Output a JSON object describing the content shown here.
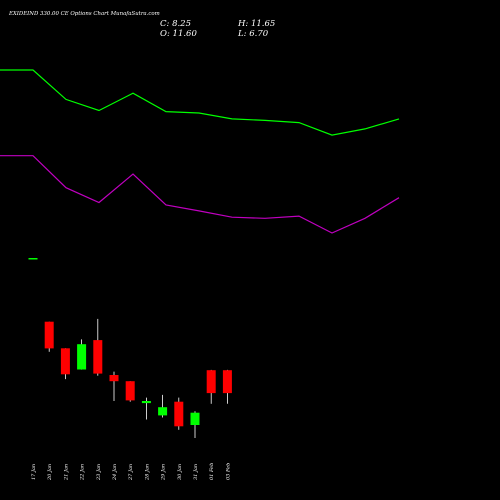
{
  "chart_data": {
    "type": "candlestick",
    "title": "EXIDEIND 330.00 CE Options Chart MunafaSutra.com",
    "ohlc_labels": {
      "open": "O: 11.60",
      "high": "H: 11.65",
      "low": "L: 6.70",
      "close": "C: 8.25"
    },
    "dates": [
      "17 Jan",
      "20 Jan",
      "21 Jan",
      "22 Jan",
      "23 Jan",
      "24 Jan",
      "27 Jan",
      "28 Jan",
      "29 Jan",
      "30 Jan",
      "31 Jan",
      "01 Feb",
      "03 Feb"
    ],
    "candles": [
      {
        "date": "17 Jan",
        "open": 28.0,
        "high": 28.0,
        "low": 28.0,
        "close": 28.0,
        "color": "#00ff00"
      },
      {
        "date": "20 Jan",
        "open": 18.7,
        "high": 18.7,
        "low": 14.3,
        "close": 14.8,
        "color": "#ff0000"
      },
      {
        "date": "21 Jan",
        "open": 14.8,
        "high": 14.8,
        "low": 10.3,
        "close": 11.0,
        "color": "#ff0000"
      },
      {
        "date": "22 Jan",
        "open": 11.7,
        "high": 16.1,
        "low": 11.7,
        "close": 15.4,
        "color": "#00ff00"
      },
      {
        "date": "23 Jan",
        "open": 16.0,
        "high": 19.1,
        "low": 10.8,
        "close": 11.1,
        "color": "#ff0000"
      },
      {
        "date": "24 Jan",
        "open": 10.9,
        "high": 11.4,
        "low": 7.1,
        "close": 10.0,
        "color": "#ff0000"
      },
      {
        "date": "27 Jan",
        "open": 10.0,
        "high": 10.0,
        "low": 7.0,
        "close": 7.2,
        "color": "#ff0000"
      },
      {
        "date": "28 Jan",
        "open": 7.1,
        "high": 7.6,
        "low": 4.4,
        "close": 6.8,
        "color": "#00ff00"
      },
      {
        "date": "29 Jan",
        "open": 5.0,
        "high": 8.0,
        "low": 4.7,
        "close": 6.2,
        "color": "#00ff00"
      },
      {
        "date": "30 Jan",
        "open": 7.0,
        "high": 7.6,
        "low": 2.9,
        "close": 3.4,
        "color": "#ff0000"
      },
      {
        "date": "31 Jan",
        "open": 3.6,
        "high": 5.6,
        "low": 1.7,
        "close": 5.4,
        "color": "#00ff00"
      },
      {
        "date": "01 Feb",
        "open": 11.6,
        "high": 11.65,
        "low": 6.7,
        "close": 8.25,
        "color": "#ff0000"
      },
      {
        "date": "03 Feb",
        "open": 11.6,
        "high": 11.65,
        "low": 6.7,
        "close": 8.25,
        "color": "#ff0000"
      }
    ],
    "series": [
      {
        "color": "#00ff00",
        "values": [
          90.0,
          90.0,
          82.0,
          79.0,
          83.7,
          78.7,
          78.3,
          76.7,
          76.3,
          75.7,
          72.3,
          74.0,
          76.7
        ]
      },
      {
        "color": "#c000c0",
        "values": [
          66.7,
          66.7,
          58.0,
          54.0,
          61.7,
          53.3,
          51.7,
          50.0,
          49.7,
          50.3,
          45.7,
          49.7,
          55.3
        ]
      }
    ],
    "colors": {
      "background": "#000000",
      "up": "#00ff00",
      "down": "#ff0000",
      "text": "#ffffff"
    },
    "grid": false
  }
}
